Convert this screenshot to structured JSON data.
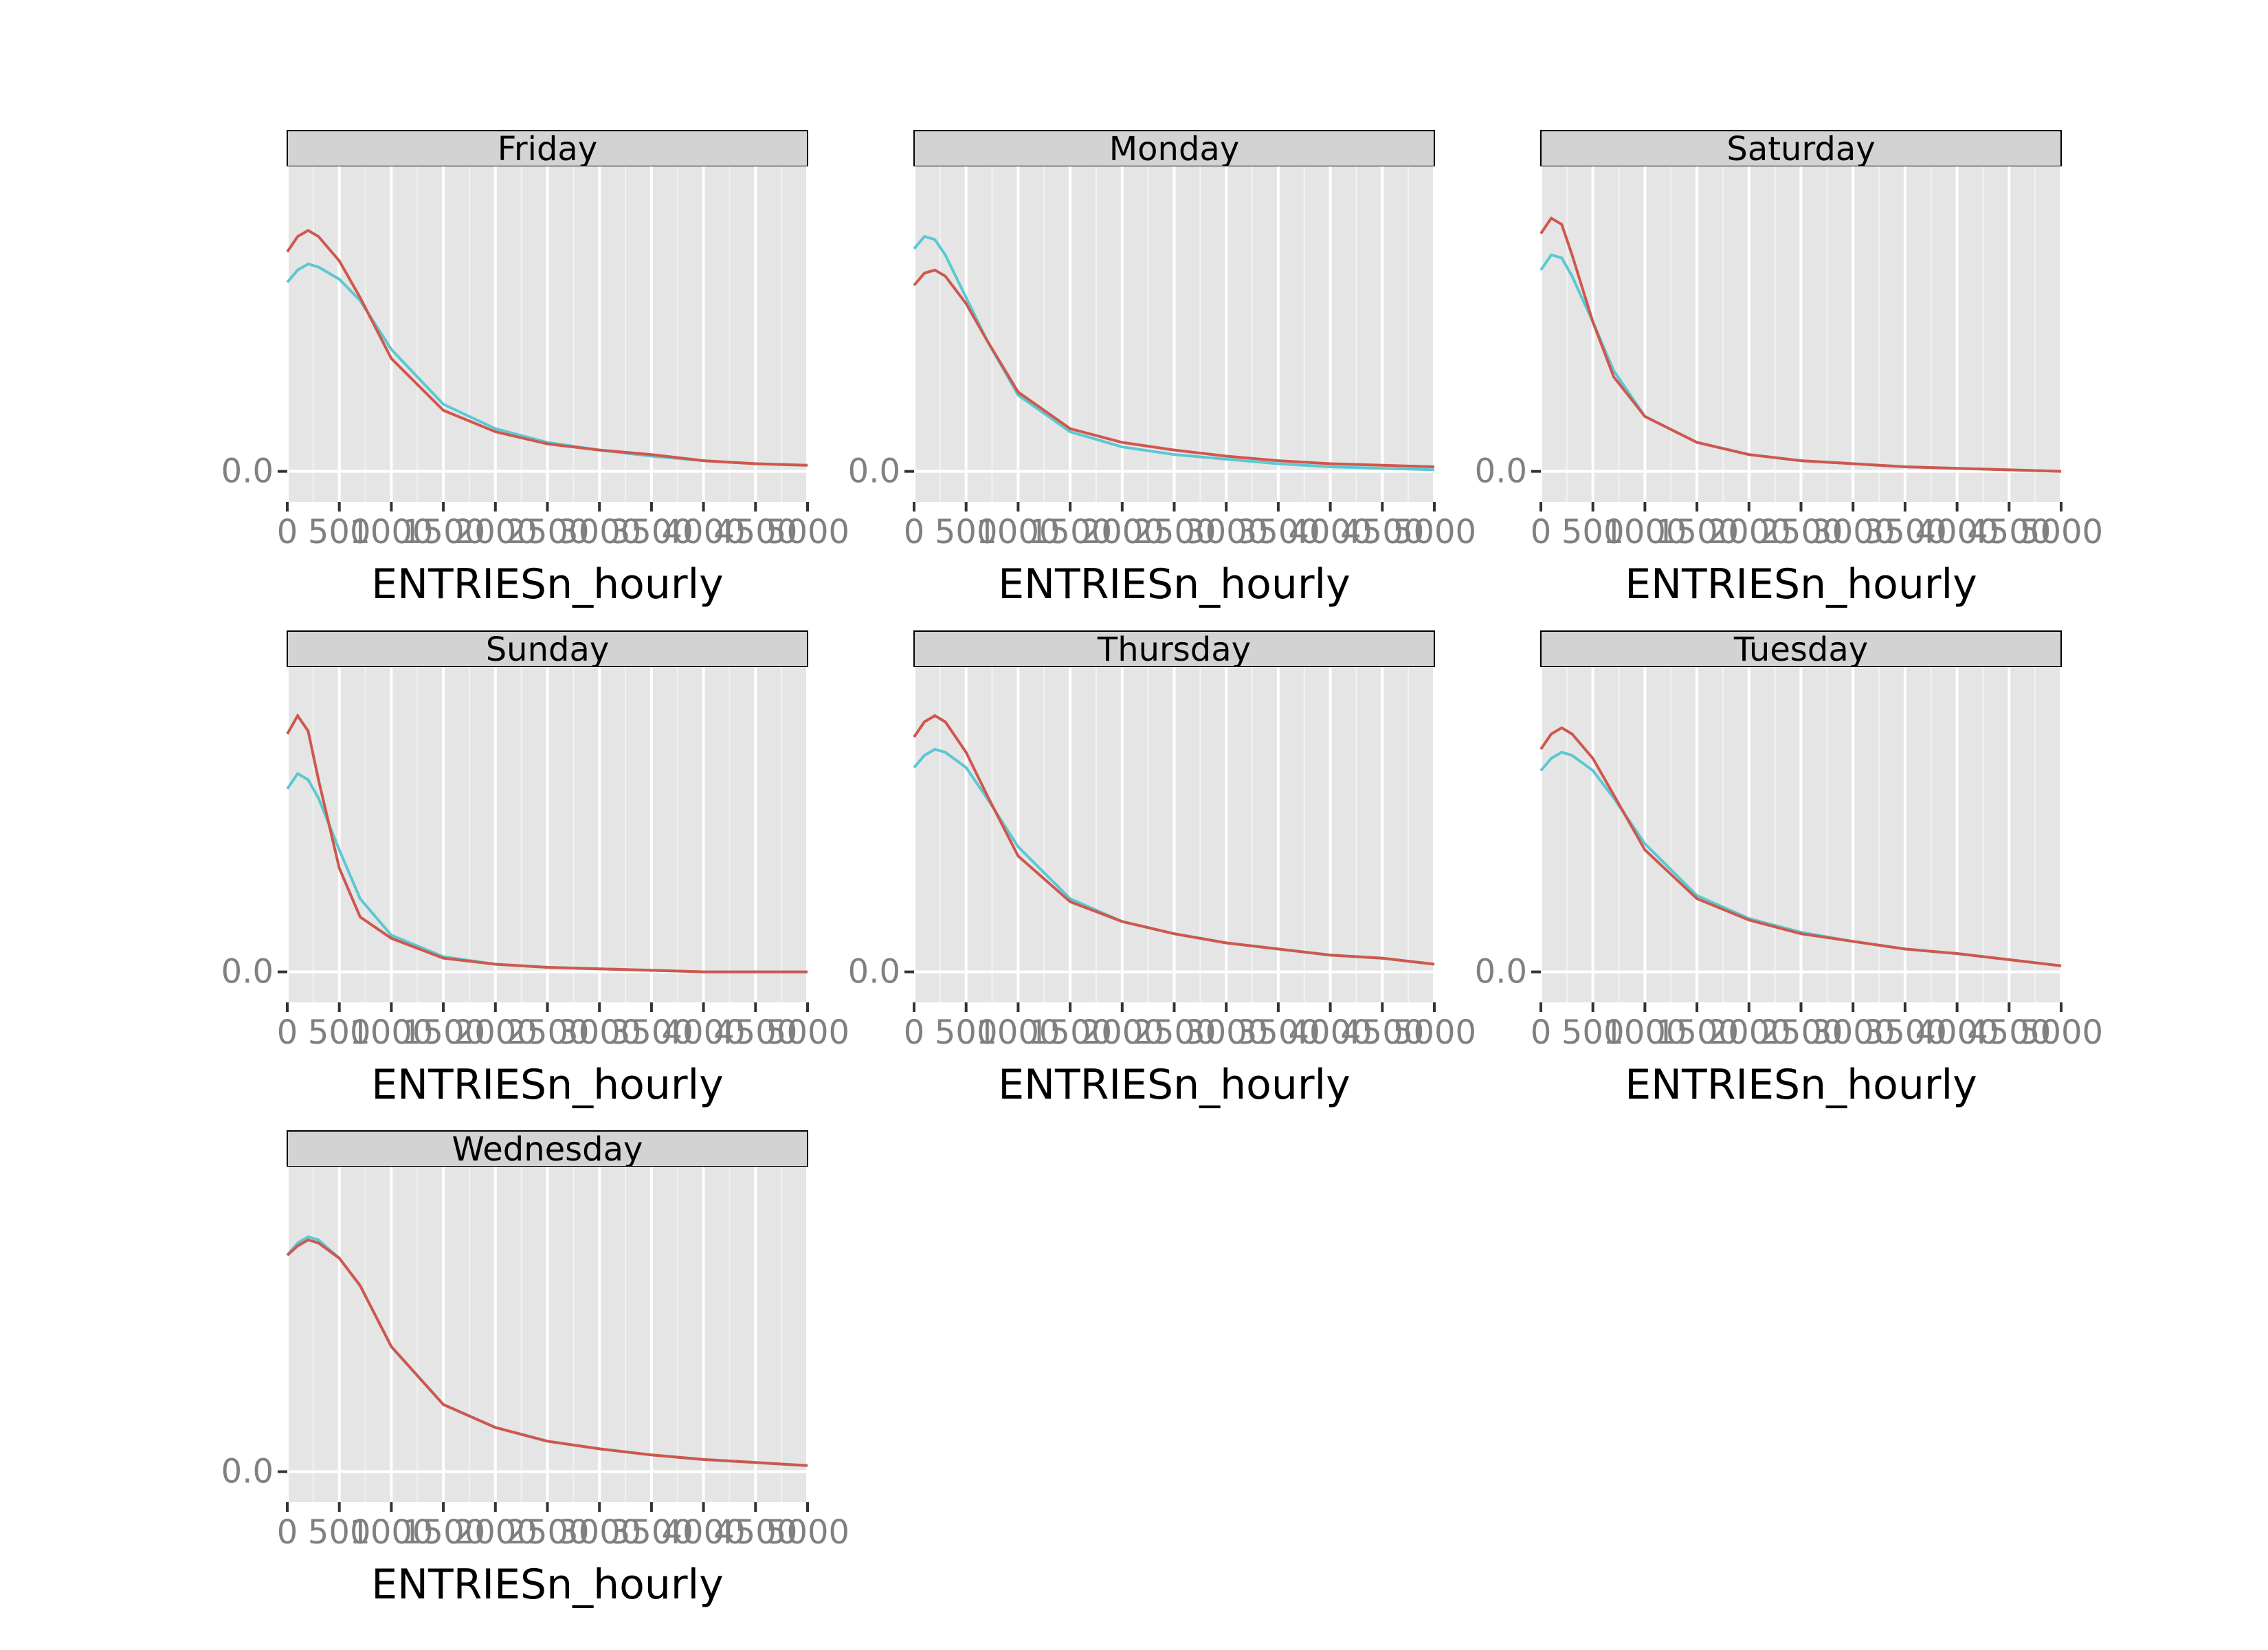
{
  "chart_data": {
    "type": "line",
    "facet_by": "day_week",
    "xlabel": "ENTRIESn_hourly",
    "ylabel": "",
    "xlim": [
      0,
      5000
    ],
    "x_ticks": [
      0,
      500,
      1000,
      1500,
      2000,
      2500,
      3000,
      3500,
      4000,
      4500,
      5000
    ],
    "x_tick_labels": [
      "0",
      "500",
      "1000",
      "1500",
      "2000",
      "2500",
      "3000",
      "3500",
      "4000",
      "4500",
      "5000"
    ],
    "y_ticks": [
      0
    ],
    "y_tick_labels": [
      "0.0"
    ],
    "series_colors": [
      "#5bc8d2",
      "#cf574d"
    ],
    "x": [
      0,
      100,
      200,
      300,
      500,
      700,
      1000,
      1500,
      2000,
      2500,
      3000,
      3500,
      4000,
      4500,
      5000
    ],
    "panels": [
      {
        "title": "Friday",
        "ylim": [
          -0.1,
          1.0
        ],
        "series": [
          {
            "values": [
              0.62,
              0.66,
              0.68,
              0.67,
              0.63,
              0.56,
              0.4,
              0.22,
              0.14,
              0.095,
              0.07,
              0.05,
              0.035,
              0.025,
              0.02
            ]
          },
          {
            "values": [
              0.72,
              0.77,
              0.79,
              0.77,
              0.69,
              0.57,
              0.37,
              0.2,
              0.13,
              0.09,
              0.07,
              0.055,
              0.035,
              0.025,
              0.02
            ]
          }
        ]
      },
      {
        "title": "Monday",
        "ylim": [
          -0.1,
          1.0
        ],
        "series": [
          {
            "values": [
              0.73,
              0.77,
              0.76,
              0.71,
              0.57,
              0.43,
              0.25,
              0.13,
              0.08,
              0.055,
              0.04,
              0.025,
              0.015,
              0.01,
              0.005
            ]
          },
          {
            "values": [
              0.61,
              0.65,
              0.66,
              0.64,
              0.55,
              0.43,
              0.26,
              0.14,
              0.095,
              0.07,
              0.05,
              0.035,
              0.025,
              0.02,
              0.015
            ]
          }
        ]
      },
      {
        "title": "Saturday",
        "ylim": [
          -0.1,
          1.0
        ],
        "series": [
          {
            "values": [
              0.66,
              0.71,
              0.7,
              0.64,
              0.49,
              0.33,
              0.18,
              0.095,
              0.055,
              0.035,
              0.025,
              0.015,
              0.01,
              0.005,
              0.0
            ]
          },
          {
            "values": [
              0.78,
              0.83,
              0.81,
              0.71,
              0.49,
              0.31,
              0.18,
              0.095,
              0.055,
              0.035,
              0.025,
              0.015,
              0.01,
              0.005,
              0.0
            ]
          }
        ]
      },
      {
        "title": "Sunday",
        "ylim": [
          -0.1,
          1.0
        ],
        "series": [
          {
            "values": [
              0.6,
              0.65,
              0.63,
              0.57,
              0.4,
              0.24,
              0.12,
              0.05,
              0.025,
              0.015,
              0.01,
              0.005,
              0.0,
              0.0,
              0.0
            ]
          },
          {
            "values": [
              0.78,
              0.84,
              0.79,
              0.63,
              0.34,
              0.18,
              0.11,
              0.045,
              0.025,
              0.015,
              0.01,
              0.005,
              0.0,
              0.0,
              0.0
            ]
          }
        ]
      },
      {
        "title": "Thursday",
        "ylim": [
          -0.1,
          1.0
        ],
        "series": [
          {
            "values": [
              0.67,
              0.71,
              0.73,
              0.72,
              0.67,
              0.57,
              0.41,
              0.24,
              0.165,
              0.125,
              0.095,
              0.075,
              0.055,
              0.045,
              0.025
            ]
          },
          {
            "values": [
              0.77,
              0.82,
              0.84,
              0.82,
              0.72,
              0.58,
              0.38,
              0.23,
              0.165,
              0.125,
              0.095,
              0.075,
              0.055,
              0.045,
              0.025
            ]
          }
        ]
      },
      {
        "title": "Tuesday",
        "ylim": [
          -0.1,
          1.0
        ],
        "series": [
          {
            "values": [
              0.66,
              0.7,
              0.72,
              0.71,
              0.66,
              0.57,
              0.42,
              0.25,
              0.175,
              0.13,
              0.1,
              0.075,
              0.06,
              0.04,
              0.02
            ]
          },
          {
            "values": [
              0.73,
              0.78,
              0.8,
              0.78,
              0.7,
              0.58,
              0.4,
              0.24,
              0.17,
              0.125,
              0.1,
              0.075,
              0.06,
              0.04,
              0.02
            ]
          }
        ]
      },
      {
        "title": "Wednesday",
        "ylim": [
          -0.1,
          1.0
        ],
        "series": [
          {
            "values": [
              0.71,
              0.75,
              0.77,
              0.76,
              0.7,
              0.61,
              0.41,
              0.22,
              0.145,
              0.1,
              0.075,
              0.055,
              0.04,
              0.03,
              0.02
            ]
          },
          {
            "values": [
              0.71,
              0.74,
              0.76,
              0.75,
              0.7,
              0.61,
              0.41,
              0.22,
              0.145,
              0.1,
              0.075,
              0.055,
              0.04,
              0.03,
              0.02
            ]
          }
        ]
      }
    ]
  }
}
